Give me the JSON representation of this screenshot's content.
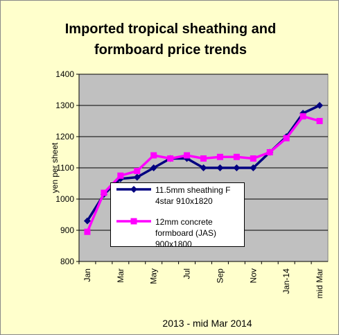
{
  "chart_data": {
    "type": "line",
    "title": "Imported tropical sheathing and formboard price trends",
    "x_label": "2013 - mid Mar 2014",
    "y_label": "yen per sheet",
    "categories": [
      "Jan",
      null,
      "Mar",
      null,
      "May",
      null,
      "Jul",
      null,
      "Sep",
      null,
      "Nov",
      null,
      "Jan-14",
      null,
      "mid Mar"
    ],
    "series": [
      {
        "name": "11.5mm sheathing F 4star 910x1820",
        "color": "#000080",
        "marker": "diamond",
        "values": [
          930,
          1015,
          1065,
          1070,
          1100,
          1130,
          1130,
          1100,
          1100,
          1100,
          1100,
          1150,
          1200,
          1275,
          1300
        ]
      },
      {
        "name": "12mm concrete formboard (JAS) 900x1800",
        "color": "#ff00ff",
        "marker": "square",
        "values": [
          895,
          1020,
          1075,
          1090,
          1140,
          1130,
          1140,
          1130,
          1135,
          1135,
          1130,
          1150,
          1195,
          1265,
          1250
        ]
      }
    ],
    "ylim": [
      800,
      1400
    ],
    "yticks": [
      800,
      900,
      1000,
      1100,
      1200,
      1300,
      1400
    ],
    "grid": true
  }
}
